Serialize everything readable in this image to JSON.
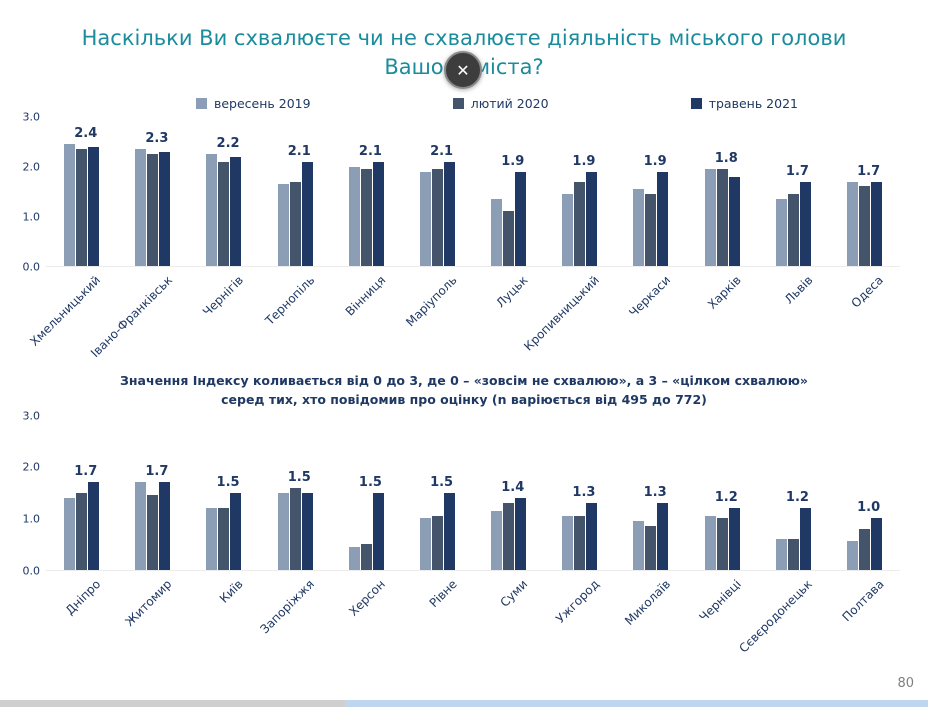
{
  "page": {
    "title_line1": "Наскільки Ви схвалюєте чи не схвалюєте діяльність міського голови",
    "title_line2": "Вашого міста?",
    "close_label": "✕",
    "page_number": "80"
  },
  "colors": {
    "title": "#1A8C9C",
    "text_navy": "#1F3864",
    "series": [
      "#8C9DB6",
      "#44546A",
      "#1F3864"
    ],
    "strip_track": "#BDD7EE",
    "strip_thumb": "#CFCFCF"
  },
  "legend": {
    "items": [
      {
        "label": "вересень 2019",
        "color": "#8C9DB6"
      },
      {
        "label": "лютий 2020",
        "color": "#44546A"
      },
      {
        "label": "травень 2021",
        "color": "#1F3864"
      }
    ]
  },
  "note": {
    "line1": "Значення Індексу коливається від 0 до 3, де 0 – «зовсім не схвалюю», а 3 – «цілком схвалюю»",
    "line2": "серед тих, хто повідомив про оцінку (n варіюється від 495 до 772)"
  },
  "chart_data": [
    {
      "type": "bar",
      "title": "Наскільки Ви схвалюєте чи не схвалюєте діяльність міського голови Вашого міста?",
      "xlabel": "",
      "ylabel": "",
      "ylim": [
        0,
        3
      ],
      "yticks": [
        "3.0",
        "2.0",
        "1.0",
        "0.0"
      ],
      "grid": false,
      "legend_position": "top",
      "categories": [
        "Хмельницький",
        "Івано-Франківськ",
        "Чернігів",
        "Тернопіль",
        "Вінниця",
        "Маріуполь",
        "Луцьк",
        "Кропивницький",
        "Черкаси",
        "Харків",
        "Львів",
        "Одеса"
      ],
      "series": [
        {
          "name": "вересень 2019",
          "values": [
            2.45,
            2.35,
            2.25,
            1.65,
            2.0,
            1.9,
            1.35,
            1.45,
            1.55,
            1.95,
            1.35,
            1.7
          ]
        },
        {
          "name": "лютий 2020",
          "values": [
            2.35,
            2.25,
            2.1,
            1.7,
            1.95,
            1.95,
            1.1,
            1.7,
            1.45,
            1.95,
            1.45,
            1.6
          ]
        },
        {
          "name": "травень 2021",
          "values": [
            2.4,
            2.3,
            2.2,
            2.1,
            2.1,
            2.1,
            1.9,
            1.9,
            1.9,
            1.8,
            1.7,
            1.7
          ]
        }
      ],
      "data_labels": [
        "2.4",
        "2.3",
        "2.2",
        "2.1",
        "2.1",
        "2.1",
        "1.9",
        "1.9",
        "1.9",
        "1.8",
        "1.7",
        "1.7"
      ]
    },
    {
      "type": "bar",
      "title": "",
      "xlabel": "",
      "ylabel": "",
      "ylim": [
        0,
        3
      ],
      "yticks": [
        "3.0",
        "2.0",
        "1.0",
        "0.0"
      ],
      "grid": false,
      "legend_position": "none",
      "categories": [
        "Дніпро",
        "Житомир",
        "Київ",
        "Запоріжжя",
        "Херсон",
        "Рівне",
        "Суми",
        "Ужгород",
        "Миколаїв",
        "Чернівці",
        "Сєвєродонецьк",
        "Полтава"
      ],
      "series": [
        {
          "name": "вересень 2019",
          "values": [
            1.4,
            1.7,
            1.2,
            1.5,
            0.45,
            1.0,
            1.15,
            1.05,
            0.95,
            1.05,
            0.6,
            0.55
          ]
        },
        {
          "name": "лютий 2020",
          "values": [
            1.5,
            1.45,
            1.2,
            1.6,
            0.5,
            1.05,
            1.3,
            1.05,
            0.85,
            1.0,
            0.6,
            0.8
          ]
        },
        {
          "name": "травень 2021",
          "values": [
            1.7,
            1.7,
            1.5,
            1.5,
            1.5,
            1.5,
            1.4,
            1.3,
            1.3,
            1.2,
            1.2,
            1.0
          ]
        }
      ],
      "data_labels": [
        "1.7",
        "1.7",
        "1.5",
        "1.5",
        "1.5",
        "1.5",
        "1.4",
        "1.3",
        "1.3",
        "1.2",
        "1.2",
        "1.0"
      ]
    }
  ]
}
